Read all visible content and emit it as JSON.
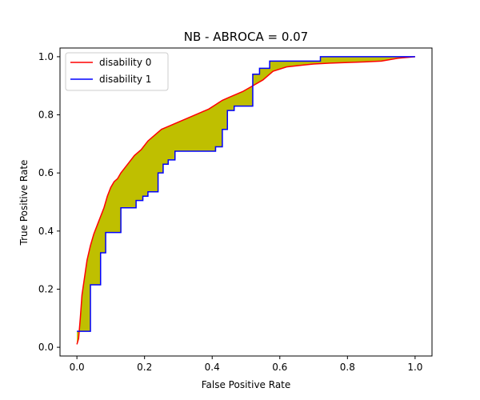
{
  "chart_data": {
    "type": "line",
    "title": "NB - ABROCA = 0.07",
    "xlabel": "False Positive Rate",
    "ylabel": "True Positive Rate",
    "xlim": [
      -0.05,
      1.05
    ],
    "ylim": [
      -0.03,
      1.03
    ],
    "xticks": [
      "0.0",
      "0.2",
      "0.4",
      "0.6",
      "0.8",
      "1.0"
    ],
    "yticks": [
      "0.0",
      "0.2",
      "0.4",
      "0.6",
      "0.8",
      "1.0"
    ],
    "grid": false,
    "legend_position": "upper-left",
    "fill_color": "#bfbf00",
    "series": [
      {
        "name": "disability 0",
        "color": "#ff0000",
        "step": false,
        "x": [
          0.0,
          0.005,
          0.01,
          0.015,
          0.02,
          0.025,
          0.03,
          0.04,
          0.05,
          0.06,
          0.07,
          0.08,
          0.09,
          0.1,
          0.11,
          0.12,
          0.13,
          0.15,
          0.17,
          0.19,
          0.21,
          0.23,
          0.25,
          0.27,
          0.29,
          0.31,
          0.33,
          0.35,
          0.37,
          0.39,
          0.41,
          0.43,
          0.45,
          0.47,
          0.49,
          0.52,
          0.55,
          0.58,
          0.62,
          0.66,
          0.7,
          0.75,
          0.8,
          0.85,
          0.9,
          0.95,
          1.0
        ],
        "y": [
          0.01,
          0.03,
          0.1,
          0.18,
          0.22,
          0.26,
          0.3,
          0.35,
          0.39,
          0.42,
          0.45,
          0.48,
          0.52,
          0.55,
          0.57,
          0.58,
          0.6,
          0.63,
          0.66,
          0.68,
          0.71,
          0.73,
          0.75,
          0.76,
          0.77,
          0.78,
          0.79,
          0.8,
          0.81,
          0.82,
          0.835,
          0.85,
          0.86,
          0.87,
          0.88,
          0.9,
          0.92,
          0.95,
          0.965,
          0.97,
          0.975,
          0.978,
          0.98,
          0.982,
          0.985,
          0.995,
          1.0
        ]
      },
      {
        "name": "disability 1",
        "color": "#0000ff",
        "step": true,
        "x": [
          0.0,
          0.04,
          0.04,
          0.07,
          0.07,
          0.085,
          0.085,
          0.13,
          0.13,
          0.175,
          0.175,
          0.195,
          0.195,
          0.21,
          0.21,
          0.24,
          0.24,
          0.255,
          0.255,
          0.27,
          0.27,
          0.29,
          0.29,
          0.32,
          0.32,
          0.41,
          0.41,
          0.43,
          0.43,
          0.445,
          0.445,
          0.465,
          0.465,
          0.52,
          0.52,
          0.54,
          0.54,
          0.57,
          0.57,
          0.72,
          0.72,
          1.0
        ],
        "y": [
          0.055,
          0.055,
          0.215,
          0.215,
          0.325,
          0.325,
          0.395,
          0.395,
          0.48,
          0.48,
          0.505,
          0.505,
          0.52,
          0.52,
          0.535,
          0.535,
          0.6,
          0.6,
          0.63,
          0.63,
          0.645,
          0.645,
          0.675,
          0.675,
          0.675,
          0.675,
          0.69,
          0.69,
          0.75,
          0.75,
          0.815,
          0.815,
          0.83,
          0.83,
          0.94,
          0.94,
          0.96,
          0.96,
          0.985,
          0.985,
          1.0,
          1.0
        ]
      }
    ]
  }
}
